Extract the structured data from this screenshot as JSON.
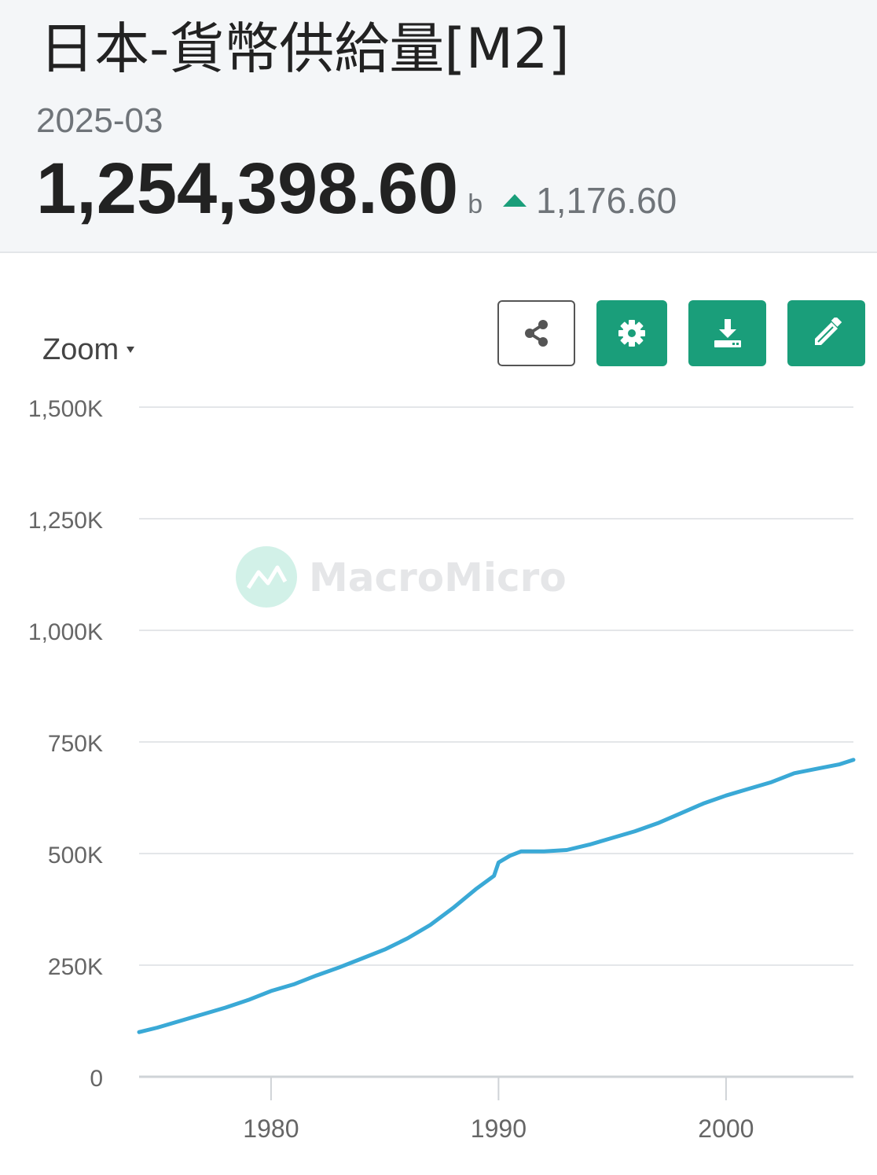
{
  "header": {
    "title": "日本-貨幣供給量[M2]",
    "date": "2025-03",
    "value": "1,254,398.60",
    "unit": "b",
    "change": "1,176.60",
    "change_direction": "up",
    "change_color": "#1a9e7a"
  },
  "toolbar": {
    "zoom_label": "Zoom",
    "icons": [
      "share-icon",
      "gear-icon",
      "download-icon",
      "pencil-icon"
    ],
    "accent_color": "#1a9e7a"
  },
  "watermark": "MacroMicro",
  "chart_data": {
    "type": "line",
    "line_color": "#3aa9d6",
    "grid": true,
    "ylim": [
      0,
      1500000
    ],
    "xlim": [
      1974.2,
      2005.6
    ],
    "y_ticks": [
      {
        "value": 0,
        "label": "0"
      },
      {
        "value": 250000,
        "label": "250K"
      },
      {
        "value": 500000,
        "label": "500K"
      },
      {
        "value": 750000,
        "label": "750K"
      },
      {
        "value": 1000000,
        "label": "1,000K"
      },
      {
        "value": 1250000,
        "label": "1,250K"
      },
      {
        "value": 1500000,
        "label": "1,500K"
      }
    ],
    "x_ticks": [
      {
        "value": 1980,
        "label": "1980"
      },
      {
        "value": 1990,
        "label": "1990"
      },
      {
        "value": 2000,
        "label": "2000"
      }
    ],
    "series": [
      {
        "x": [
          1974.2,
          1975,
          1976,
          1977,
          1978,
          1979,
          1980,
          1981,
          1982,
          1983,
          1984,
          1985,
          1986,
          1987,
          1988,
          1989,
          1989.8,
          1990,
          1990.5,
          1991,
          1992,
          1993,
          1994,
          1995,
          1996,
          1997,
          1998,
          1999,
          2000,
          2001,
          2002,
          2003,
          2004,
          2005,
          2005.6
        ],
        "y": [
          100000,
          110000,
          125000,
          140000,
          155000,
          172000,
          192000,
          207000,
          227000,
          245000,
          265000,
          285000,
          310000,
          340000,
          378000,
          420000,
          450000,
          480000,
          495000,
          505000,
          505000,
          508000,
          520000,
          535000,
          550000,
          568000,
          590000,
          612000,
          630000,
          645000,
          660000,
          680000,
          690000,
          700000,
          710000
        ]
      }
    ]
  }
}
